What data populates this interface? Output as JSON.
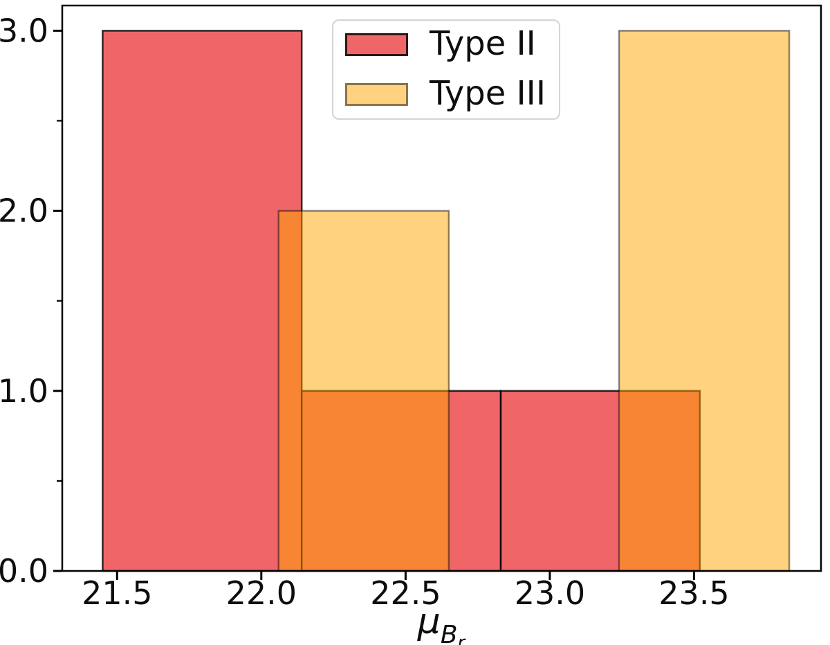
{
  "chart_data": {
    "type": "histogram",
    "title": "",
    "xlabel": {
      "symbol": "μ",
      "sub": "B",
      "subsub": "r"
    },
    "ylabel": "",
    "xlim": [
      21.31,
      23.94
    ],
    "ylim": [
      0,
      3.14
    ],
    "grid": false,
    "x_ticks": [
      {
        "v": 21.5,
        "label": "21.5"
      },
      {
        "v": 22.0,
        "label": "22.0"
      },
      {
        "v": 22.5,
        "label": "22.5"
      },
      {
        "v": 23.0,
        "label": "23.0"
      },
      {
        "v": 23.5,
        "label": "23.5"
      }
    ],
    "y_ticks": [
      {
        "v": 0,
        "label": "0.0"
      },
      {
        "v": 1,
        "label": "1.0"
      },
      {
        "v": 2,
        "label": "2.0"
      },
      {
        "v": 3,
        "label": "3.0"
      }
    ],
    "y_minor_ticks": [
      0.5,
      1.5,
      2.5
    ],
    "series": [
      {
        "name": "Type II",
        "bin_edges": [
          21.45,
          22.14,
          22.83,
          23.52
        ],
        "counts": [
          3,
          1,
          1
        ],
        "fill_rgb": "235,62,66",
        "fill_alpha": 0.8,
        "edge_color": "rgba(0,0,0,0.8)",
        "swatch_fill": "#ee6668",
        "swatch_edge": "#331415"
      },
      {
        "name": "Type III",
        "bin_edges": [
          22.06,
          22.65,
          23.24,
          23.83
        ],
        "counts": [
          2,
          0,
          3
        ],
        "fill_rgb": "255,165,0",
        "fill_alpha": 0.5,
        "edge_color": "rgba(0,0,0,0.45)",
        "swatch_fill": "#ffd280",
        "swatch_edge": "#8c7346"
      }
    ],
    "legend_position": "upper center-left"
  }
}
